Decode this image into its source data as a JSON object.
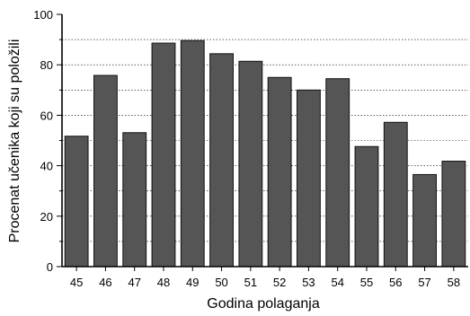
{
  "chart_data": {
    "type": "bar",
    "xlabel": "Godina polaganja",
    "ylabel": "Procenat učenika koji su položili",
    "ylim": [
      0,
      100
    ],
    "yticks": [
      0,
      20,
      40,
      60,
      80,
      100
    ],
    "grid": "horizontal dotted at 10-unit steps",
    "categories": [
      "45",
      "46",
      "47",
      "48",
      "49",
      "50",
      "51",
      "52",
      "53",
      "54",
      "55",
      "56",
      "57",
      "58"
    ],
    "values": [
      51.7,
      75.8,
      53.1,
      88.6,
      89.6,
      84.4,
      81.4,
      75.0,
      70.0,
      74.5,
      47.6,
      57.2,
      36.5,
      41.8
    ],
    "colors": {
      "bar_fill": "#555555",
      "bar_stroke": "#111111",
      "axis": "#000000",
      "grid": "#000000"
    }
  }
}
